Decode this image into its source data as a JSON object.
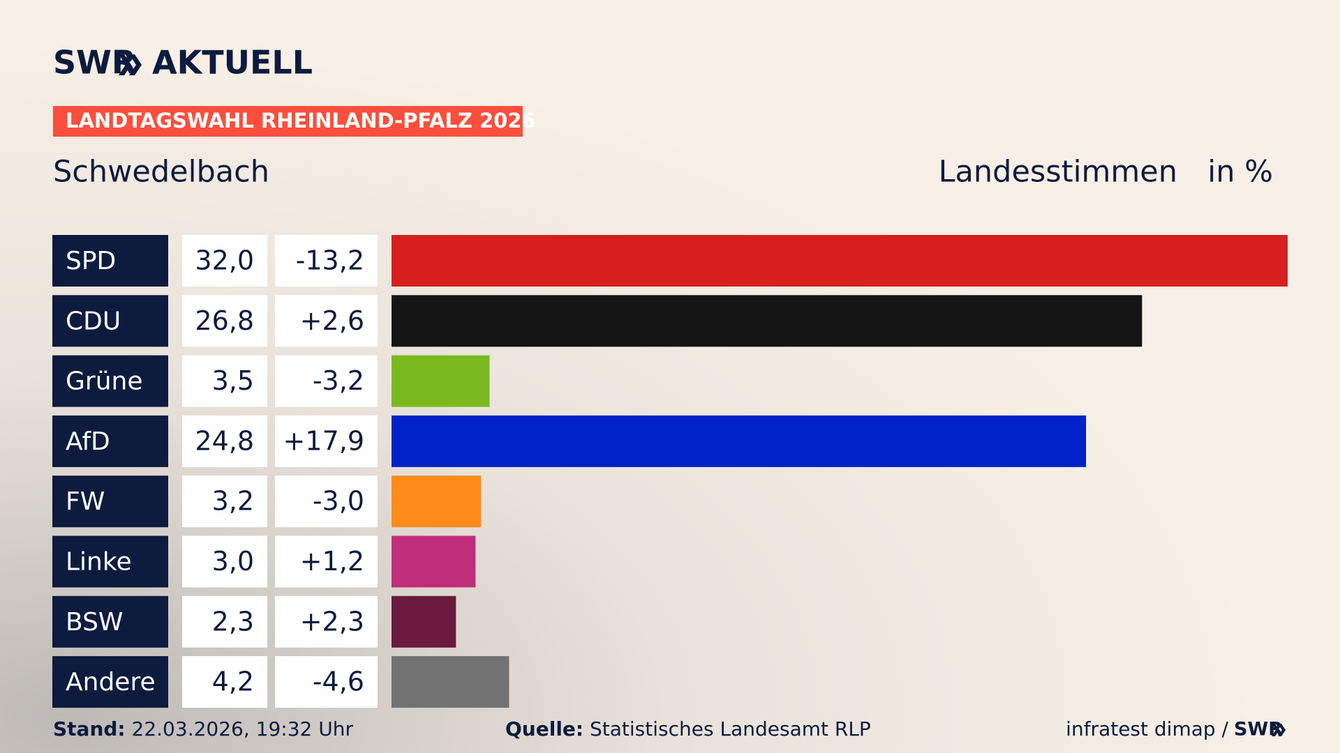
{
  "header": {
    "logo_left": "SWR",
    "logo_right": "AKTUELL",
    "badge": "LANDTAGSWAHL RHEINLAND-PFALZ 2026",
    "place": "Schwedelbach",
    "measure": "Landesstimmen",
    "unit": "in %"
  },
  "chart_data": {
    "type": "bar",
    "categories": [
      "SPD",
      "CDU",
      "Grüne",
      "AfD",
      "FW",
      "Linke",
      "BSW",
      "Andere"
    ],
    "values": [
      32.0,
      26.8,
      3.5,
      24.8,
      3.2,
      3.0,
      2.3,
      4.2
    ],
    "value_labels": [
      "32,0",
      "26,8",
      "3,5",
      "24,8",
      "3,2",
      "3,0",
      "2,3",
      "4,2"
    ],
    "change_labels": [
      "-13,2",
      "+2,6",
      "-3,2",
      "+17,9",
      "-3,0",
      "+1,2",
      "+2,3",
      "-4,6"
    ],
    "colors": [
      "#d71f1f",
      "#141414",
      "#7aba1e",
      "#0021c8",
      "#ff8c1a",
      "#bf2e78",
      "#6a1a3c",
      "#737373"
    ],
    "xlim": [
      0,
      32.0
    ]
  },
  "footer": {
    "stand_label": "Stand:",
    "stand": "22.03.2026, 19:32 Uhr",
    "source_label": "Quelle:",
    "source": "Statistisches Landesamt RLP",
    "credit": "infratest dimap /",
    "logo": "SWR"
  }
}
